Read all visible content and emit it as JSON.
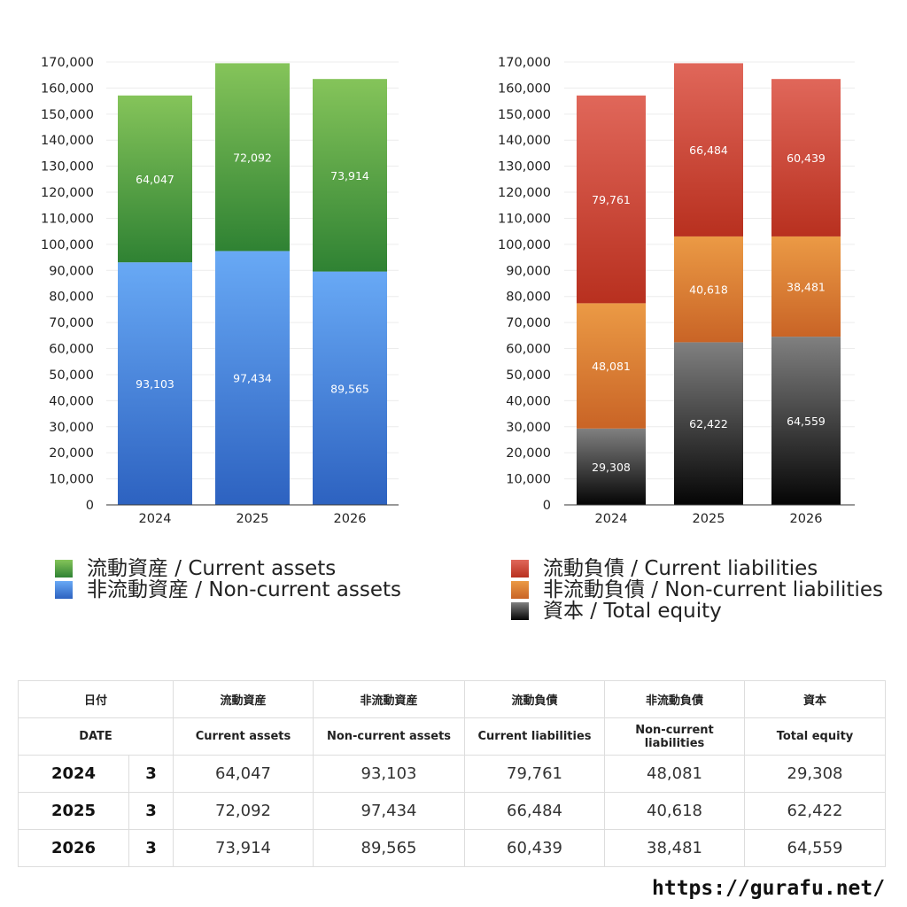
{
  "chart_data": [
    {
      "type": "bar",
      "stacked": true,
      "categories": [
        "2024",
        "2025",
        "2026"
      ],
      "ylim": [
        0,
        170000
      ],
      "yticks": [
        "0",
        "10,000",
        "20,000",
        "30,000",
        "40,000",
        "50,000",
        "60,000",
        "70,000",
        "80,000",
        "90,000",
        "100,000",
        "110,000",
        "120,000",
        "130,000",
        "140,000",
        "150,000",
        "160,000",
        "170,000"
      ],
      "grid": true,
      "series": [
        {
          "name": "非流動資産 / Non-current assets",
          "values": [
            93103,
            97434,
            89565
          ],
          "labels": [
            "93,103",
            "97,434",
            "89,565"
          ],
          "color_top": "#68a9f5",
          "color_bottom": "#2d62c0"
        },
        {
          "name": "流動資産 / Current assets",
          "values": [
            64047,
            72092,
            73914
          ],
          "labels": [
            "64,047",
            "72,092",
            "73,914"
          ],
          "color_top": "#85c45a",
          "color_bottom": "#2f8233"
        }
      ],
      "legend": [
        {
          "label": "流動資産 / Current assets",
          "color_top": "#85c45a",
          "color_bottom": "#2f8233"
        },
        {
          "label": "非流動資産 / Non-current assets",
          "color_top": "#68a9f5",
          "color_bottom": "#2d62c0"
        }
      ]
    },
    {
      "type": "bar",
      "stacked": true,
      "categories": [
        "2024",
        "2025",
        "2026"
      ],
      "ylim": [
        0,
        170000
      ],
      "yticks": [
        "0",
        "10,000",
        "20,000",
        "30,000",
        "40,000",
        "50,000",
        "60,000",
        "70,000",
        "80,000",
        "90,000",
        "100,000",
        "110,000",
        "120,000",
        "130,000",
        "140,000",
        "150,000",
        "160,000",
        "170,000"
      ],
      "grid": true,
      "series": [
        {
          "name": "資本 / Total equity",
          "values": [
            29308,
            62422,
            64559
          ],
          "labels": [
            "29,308",
            "62,422",
            "64,559"
          ],
          "color_top": "#808080",
          "color_bottom": "#050505"
        },
        {
          "name": "非流動負債 / Non-current liabilities",
          "values": [
            48081,
            40618,
            38481
          ],
          "labels": [
            "48,081",
            "40,618",
            "38,481"
          ],
          "color_top": "#eb9a45",
          "color_bottom": "#c96426"
        },
        {
          "name": "流動負債 / Current liabilities",
          "values": [
            79761,
            66484,
            60439
          ],
          "labels": [
            "79,761",
            "66,484",
            "60,439"
          ],
          "color_top": "#e0675a",
          "color_bottom": "#b8301f"
        }
      ],
      "legend": [
        {
          "label": "流動負債 / Current liabilities",
          "color_top": "#e0675a",
          "color_bottom": "#b8301f"
        },
        {
          "label": "非流動負債 / Non-current liabilities",
          "color_top": "#eb9a45",
          "color_bottom": "#c96426"
        },
        {
          "label": "資本 / Total equity",
          "color_top": "#808080",
          "color_bottom": "#050505"
        }
      ]
    }
  ],
  "table": {
    "header_jp": [
      "日付",
      "流動資産",
      "非流動資産",
      "流動負債",
      "非流動負債",
      "資本"
    ],
    "header_en": [
      "DATE",
      "Current assets",
      "Non-current assets",
      "Current liabilities",
      "Non-current liabilities",
      "Total equity"
    ],
    "rows": [
      {
        "year": "2024",
        "month": "3",
        "values": [
          "64,047",
          "93,103",
          "79,761",
          "48,081",
          "29,308"
        ]
      },
      {
        "year": "2025",
        "month": "3",
        "values": [
          "72,092",
          "97,434",
          "66,484",
          "40,618",
          "62,422"
        ]
      },
      {
        "year": "2026",
        "month": "3",
        "values": [
          "73,914",
          "89,565",
          "60,439",
          "38,481",
          "64,559"
        ]
      }
    ]
  },
  "site": "https://gurafu.net/"
}
